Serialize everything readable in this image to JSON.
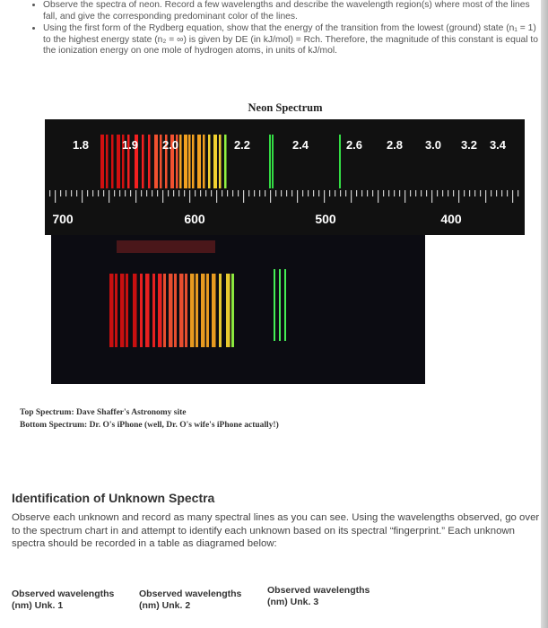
{
  "bullets": [
    "Observe the spectra of neon. Record a few wavelengths and describe the wavelength region(s) where most of the lines fall, and give the corresponding predominant color of the lines.",
    "Using the first form of the Rydberg equation, show that the energy of the transition from the lowest (ground) state (n₁ = 1) to the highest energy state (n₂ = ∞) is given by DE (in kJ/mol) = Rch. Therefore, the magnitude of this constant is equal to the ionization energy on one mole of hydrogen atoms, in units of kJ/mol."
  ],
  "figure": {
    "title": "Neon Spectrum",
    "energy_labels": [
      "1.8",
      "1.9",
      "2.0",
      "2.2",
      "2.4",
      "2.6",
      "2.8",
      "3.0",
      "3.2",
      "3.4"
    ],
    "wavelength_labels": [
      "700",
      "600",
      "500",
      "400"
    ],
    "caption_lines": [
      "Top Spectrum: Dave Shaffer's Astronomy site",
      "Bottom Spectrum: Dr. O's iPhone (well, Dr. O's wife's iPhone actually!)"
    ]
  },
  "section": {
    "heading": "Identification of Unknown Spectra",
    "paragraph": "Observe each unknown and record as many spectral lines as you can see. Using the wavelengths observed, go over to the spectrum chart in and attempt to identify each unknown based on its spectral “fingerprint.” Each unknown spectra should be recorded in a table as diagramed below:"
  },
  "table_headers": [
    "Observed wavelengths (nm) Unk. 1",
    "Observed wavelengths (nm) Unk. 2",
    "Observed wavelengths (nm) Unk. 3"
  ]
}
